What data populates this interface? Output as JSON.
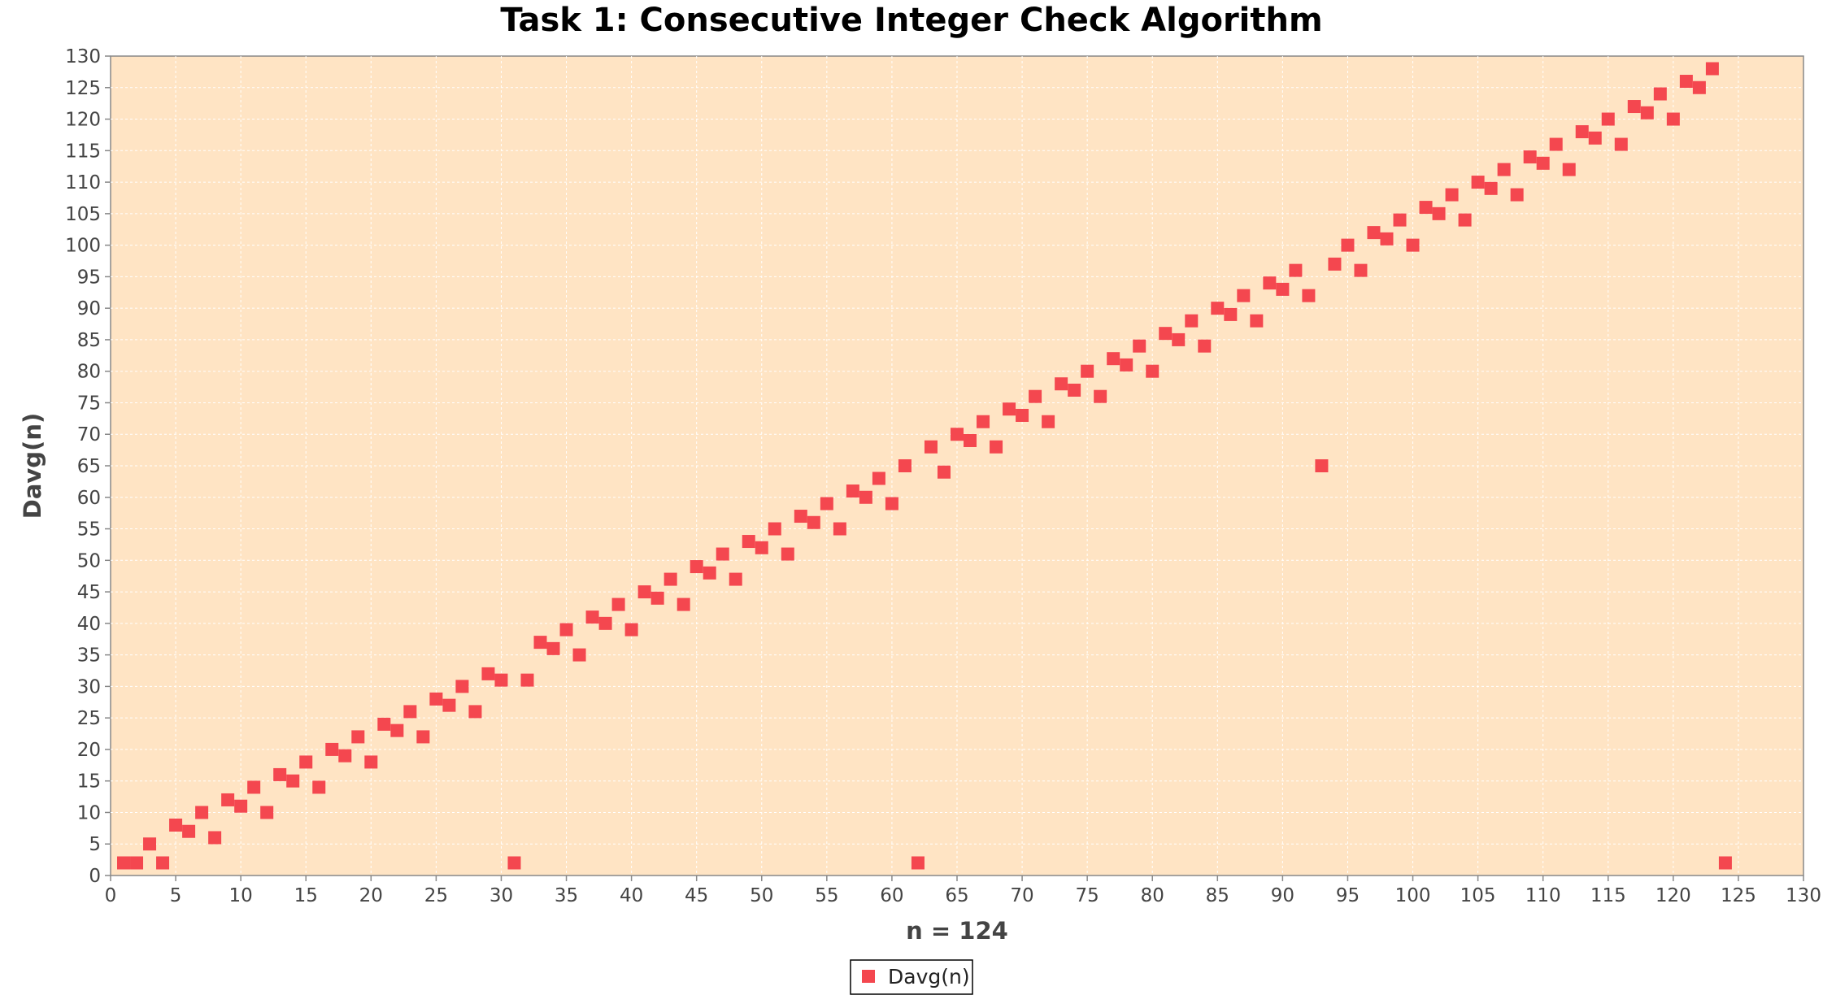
{
  "chart_data": {
    "type": "scatter",
    "title": "Task 1: Consecutive Integer Check Algorithm",
    "xlabel": "n = 124",
    "ylabel": "Davg(n)",
    "xlim": [
      0,
      130
    ],
    "ylim": [
      0,
      130
    ],
    "xticks": [
      0,
      5,
      10,
      15,
      20,
      25,
      30,
      35,
      40,
      45,
      50,
      55,
      60,
      65,
      70,
      75,
      80,
      85,
      90,
      95,
      100,
      105,
      110,
      115,
      120,
      125,
      130
    ],
    "yticks": [
      0,
      5,
      10,
      15,
      20,
      25,
      30,
      35,
      40,
      45,
      50,
      55,
      60,
      65,
      70,
      75,
      80,
      85,
      90,
      95,
      100,
      105,
      110,
      115,
      120,
      125,
      130
    ],
    "grid": true,
    "legend": "bottom-center",
    "colors": {
      "plot_background": "#FFE4C4",
      "marker": "#F4474F",
      "grid": "#FFFFFF",
      "axis": "#888888"
    },
    "series": [
      {
        "name": "Davg(n)",
        "x": [
          1,
          2,
          3,
          4,
          5,
          6,
          7,
          8,
          9,
          10,
          11,
          12,
          13,
          14,
          15,
          16,
          17,
          18,
          19,
          20,
          21,
          22,
          23,
          24,
          25,
          26,
          27,
          28,
          29,
          30,
          31,
          32,
          33,
          34,
          35,
          36,
          37,
          38,
          39,
          40,
          41,
          42,
          43,
          44,
          45,
          46,
          47,
          48,
          49,
          50,
          51,
          52,
          53,
          54,
          55,
          56,
          57,
          58,
          59,
          60,
          61,
          62,
          63,
          64,
          65,
          66,
          67,
          68,
          69,
          70,
          71,
          72,
          73,
          74,
          75,
          76,
          77,
          78,
          79,
          80,
          81,
          82,
          83,
          84,
          85,
          86,
          87,
          88,
          89,
          90,
          91,
          92,
          93,
          94,
          95,
          96,
          97,
          98,
          99,
          100,
          101,
          102,
          103,
          104,
          105,
          106,
          107,
          108,
          109,
          110,
          111,
          112,
          113,
          114,
          115,
          116,
          117,
          118,
          119,
          120,
          121,
          122,
          123,
          124
        ],
        "y": [
          2,
          2,
          5,
          2,
          8,
          7,
          10,
          6,
          12,
          11,
          14,
          10,
          16,
          15,
          18,
          14,
          20,
          19,
          22,
          18,
          24,
          23,
          26,
          22,
          28,
          27,
          30,
          26,
          32,
          31,
          2,
          31,
          37,
          36,
          39,
          35,
          41,
          40,
          43,
          39,
          45,
          44,
          47,
          43,
          49,
          48,
          51,
          47,
          53,
          52,
          55,
          51,
          57,
          56,
          59,
          55,
          61,
          60,
          63,
          59,
          65,
          2,
          68,
          64,
          70,
          69,
          72,
          68,
          74,
          73,
          76,
          72,
          78,
          77,
          80,
          76,
          82,
          81,
          84,
          80,
          86,
          85,
          88,
          84,
          90,
          89,
          92,
          88,
          94,
          93,
          96,
          92,
          65,
          97,
          100,
          96,
          102,
          101,
          104,
          100,
          106,
          105,
          108,
          104,
          110,
          109,
          112,
          108,
          114,
          113,
          116,
          112,
          118,
          117,
          120,
          116,
          122,
          121,
          124,
          120,
          126,
          125,
          128,
          2
        ]
      }
    ]
  }
}
